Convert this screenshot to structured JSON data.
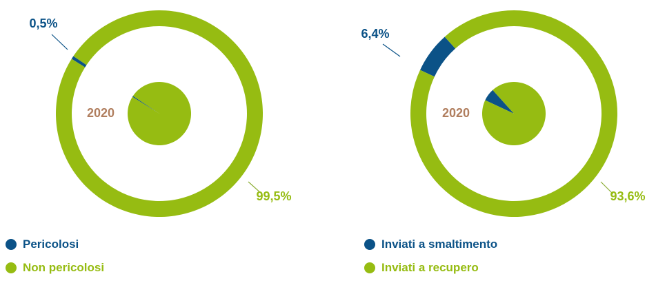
{
  "colors": {
    "blue": "#0b5287",
    "green": "#96bc12",
    "year": "#b07e5e",
    "leader": "#8fb03a"
  },
  "chart_data": [
    {
      "type": "pie",
      "variant": "donut-ring-with-inner-pie",
      "center_label": "2020",
      "series": [
        {
          "name": "Pericolosi",
          "value": 0.5,
          "label": "0,5%",
          "color": "#0b5287"
        },
        {
          "name": "Non pericolosi",
          "value": 99.5,
          "label": "99,5%",
          "color": "#96bc12"
        }
      ],
      "legend_position": "bottom-left"
    },
    {
      "type": "pie",
      "variant": "donut-ring-with-inner-pie",
      "center_label": "2020",
      "series": [
        {
          "name": "Inviati a smaltimento",
          "value": 6.4,
          "label": "6,4%",
          "color": "#0b5287"
        },
        {
          "name": "Inviati a recupero",
          "value": 93.6,
          "label": "93,6%",
          "color": "#96bc12"
        }
      ],
      "legend_position": "bottom-left"
    }
  ]
}
